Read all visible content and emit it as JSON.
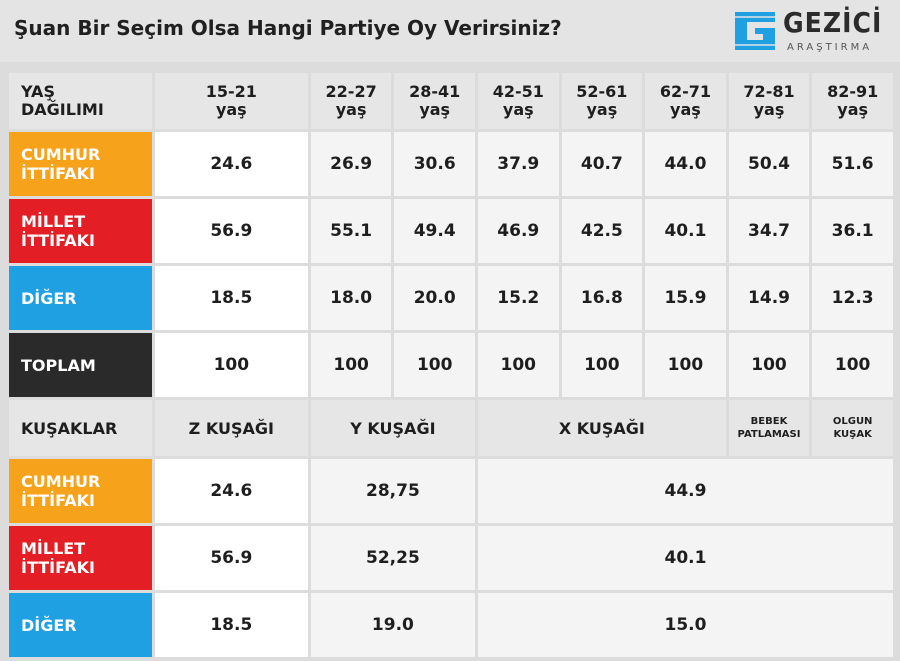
{
  "title": "Şuan Bir Seçim Olsa Hangi Partiye Oy Verirsiniz?",
  "logo": {
    "name": "GEZİCİ",
    "sub": "ARAŞTIRMA",
    "color": "#1fa0e3"
  },
  "colors": {
    "cumhur": "#f7a21b",
    "millet": "#e31e24",
    "diger": "#1fa0e3",
    "toplam": "#2a2a2a"
  },
  "chart_data": {
    "type": "table",
    "title": "Şuan Bir Seçim Olsa Hangi Partiye Oy Verirsiniz?",
    "age_table": {
      "header": "YAŞ DAĞILIMI",
      "columns": [
        "15-21 yaş",
        "22-27 yaş",
        "28-41 yaş",
        "42-51 yaş",
        "52-61 yaş",
        "62-71 yaş",
        "72-81 yaş",
        "82-91 yaş"
      ],
      "columns_top": [
        "15-21",
        "22-27",
        "28-41",
        "42-51",
        "52-61",
        "62-71",
        "72-81",
        "82-91"
      ],
      "columns_bottom": [
        "yaş",
        "yaş",
        "yaş",
        "yaş",
        "yaş",
        "yaş",
        "yaş",
        "yaş"
      ],
      "rows": [
        {
          "label_1": "CUMHUR",
          "label_2": "İTTİFAKI",
          "values": [
            "24.6",
            "26.9",
            "30.6",
            "37.9",
            "40.7",
            "44.0",
            "50.4",
            "51.6"
          ]
        },
        {
          "label_1": "MİLLET",
          "label_2": "İTTİFAKI",
          "values": [
            "56.9",
            "55.1",
            "49.4",
            "46.9",
            "42.5",
            "40.1",
            "34.7",
            "36.1"
          ]
        },
        {
          "label_1": "DİĞER",
          "label_2": "",
          "values": [
            "18.5",
            "18.0",
            "20.0",
            "15.2",
            "16.8",
            "15.9",
            "14.9",
            "12.3"
          ]
        },
        {
          "label_1": "TOPLAM",
          "label_2": "",
          "values": [
            "100",
            "100",
            "100",
            "100",
            "100",
            "100",
            "100",
            "100"
          ]
        }
      ]
    },
    "generation_table": {
      "header": "KUŞAKLAR",
      "z": "Z KUŞAĞI",
      "y": "Y KUŞAĞI",
      "x": "X KUŞAĞI",
      "boomer_1": "BEBEK",
      "boomer_2": "PATLAMASI",
      "olgun_1": "OLGUN",
      "olgun_2": "KUŞAK",
      "rows": [
        {
          "label_1": "CUMHUR",
          "label_2": "İTTİFAKI",
          "z": "24.6",
          "y": "28,75",
          "x": "44.9"
        },
        {
          "label_1": "MİLLET",
          "label_2": "İTTİFAKI",
          "z": "56.9",
          "y": "52,25",
          "x": "40.1"
        },
        {
          "label_1": "DİĞER",
          "label_2": "",
          "z": "18.5",
          "y": "19.0",
          "x": "15.0"
        }
      ]
    }
  }
}
